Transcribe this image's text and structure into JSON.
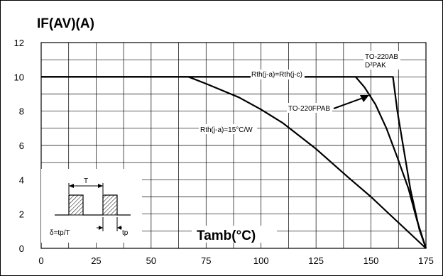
{
  "chart_data": {
    "type": "line",
    "title": "",
    "ylabel": "IF(AV)(A)",
    "xlabel": "Tamb(°C)",
    "xlim": [
      0,
      175
    ],
    "ylim": [
      0,
      12
    ],
    "x_ticks": [
      "0",
      "25",
      "50",
      "75",
      "100",
      "125",
      "150",
      "175"
    ],
    "y_ticks": [
      "0",
      "2",
      "4",
      "6",
      "8",
      "10",
      "12"
    ],
    "grid": true,
    "series": [
      {
        "name": "Rth(j-a)=Rth(j-c)",
        "points": [
          [
            0,
            10
          ],
          [
            160,
            10
          ],
          [
            162,
            8
          ],
          [
            165,
            5.7
          ],
          [
            168,
            3.4
          ],
          [
            172,
            1.1
          ],
          [
            175,
            0
          ]
        ]
      },
      {
        "name": "TO-220FPAB",
        "points": [
          [
            0,
            10
          ],
          [
            143,
            10
          ],
          [
            147,
            9.4
          ],
          [
            152,
            8.4
          ],
          [
            157,
            7.0
          ],
          [
            162,
            5.3
          ],
          [
            167,
            3.5
          ],
          [
            171,
            1.6
          ],
          [
            175,
            0
          ]
        ]
      },
      {
        "name": "Rth(j-a)=15°C/W",
        "points": [
          [
            0,
            10
          ],
          [
            67,
            10
          ],
          [
            75,
            9.6
          ],
          [
            90,
            8.8
          ],
          [
            100,
            8.1
          ],
          [
            110,
            7.3
          ],
          [
            125,
            5.8
          ],
          [
            140,
            4.1
          ],
          [
            150,
            3.0
          ],
          [
            160,
            1.8
          ],
          [
            175,
            0
          ]
        ]
      }
    ],
    "annotations": {
      "rth_equal": "Rth(j-a)=Rth(j-c)",
      "package_1": "TO-220AB",
      "package_2": "D²PAK",
      "fp_label": "TO-220FPAB",
      "rth_15": "Rth(j-a)=15°C/W"
    },
    "inset": {
      "period_label": "T",
      "duty_label": "δ=tp/T",
      "pulse_label": "tp"
    }
  }
}
